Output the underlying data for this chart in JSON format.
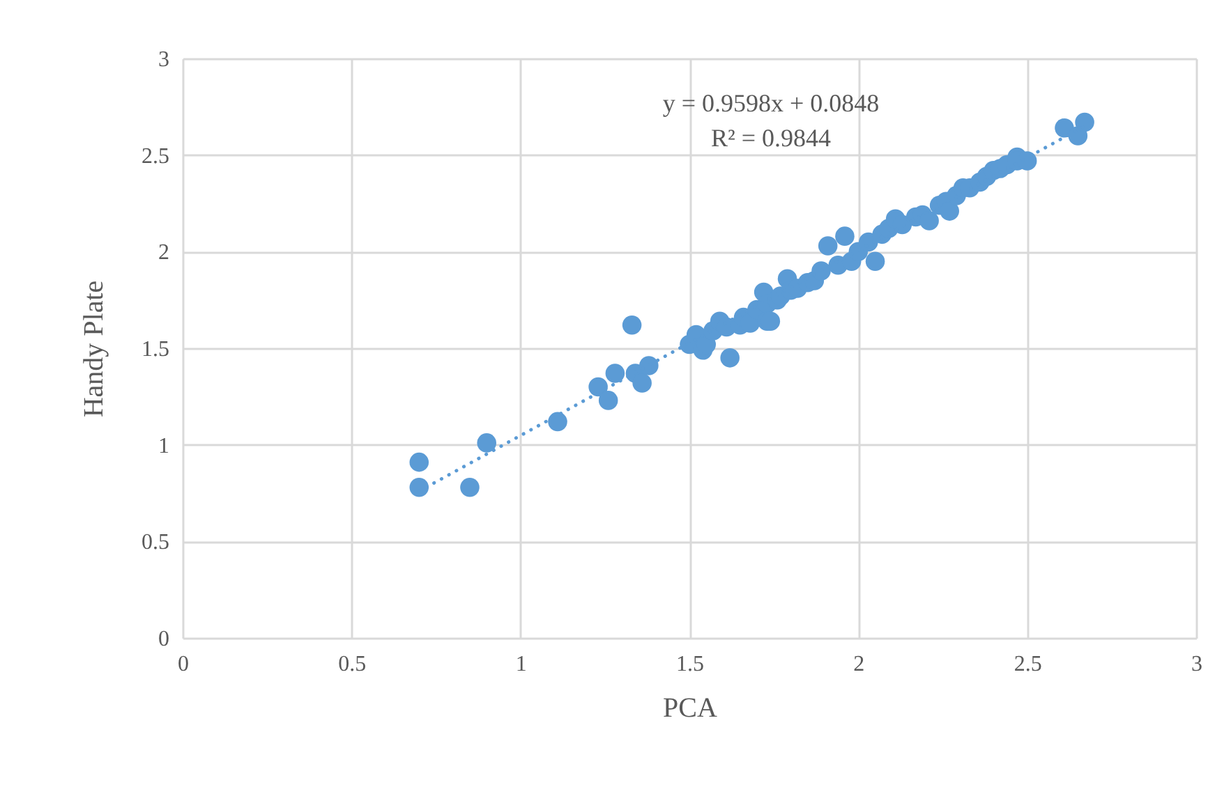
{
  "chart_data": {
    "type": "scatter",
    "xlabel": "PCA",
    "ylabel": "Handy Plate",
    "xlim": [
      0,
      3
    ],
    "ylim": [
      0,
      3
    ],
    "xticks": [
      0,
      0.5,
      1,
      1.5,
      2,
      2.5,
      3
    ],
    "yticks": [
      0,
      0.5,
      1,
      1.5,
      2,
      2.5,
      3
    ],
    "grid": true,
    "annotations": [
      "y = 0.9598x + 0.0848",
      "R² = 0.9844"
    ],
    "series": [
      {
        "marker": "circle",
        "color": "#5b9bd5",
        "x": [
          0.7,
          0.7,
          0.85,
          0.9,
          1.11,
          1.23,
          1.26,
          1.28,
          1.33,
          1.34,
          1.36,
          1.38,
          1.5,
          1.52,
          1.54,
          1.55,
          1.57,
          1.59,
          1.61,
          1.62,
          1.65,
          1.66,
          1.68,
          1.7,
          1.72,
          1.73,
          1.73,
          1.74,
          1.76,
          1.77,
          1.79,
          1.8,
          1.82,
          1.85,
          1.87,
          1.89,
          1.91,
          1.94,
          1.96,
          1.98,
          2.0,
          2.03,
          2.05,
          2.07,
          2.09,
          2.11,
          2.13,
          2.17,
          2.19,
          2.21,
          2.24,
          2.26,
          2.27,
          2.29,
          2.31,
          2.33,
          2.36,
          2.38,
          2.4,
          2.42,
          2.44,
          2.47,
          2.47,
          2.5,
          2.61,
          2.65,
          2.67
        ],
        "values": [
          0.91,
          0.78,
          0.78,
          1.01,
          1.12,
          1.3,
          1.23,
          1.37,
          1.62,
          1.37,
          1.32,
          1.41,
          1.52,
          1.57,
          1.49,
          1.52,
          1.59,
          1.64,
          1.61,
          1.45,
          1.62,
          1.66,
          1.63,
          1.7,
          1.79,
          1.73,
          1.64,
          1.64,
          1.75,
          1.77,
          1.86,
          1.8,
          1.81,
          1.84,
          1.85,
          1.9,
          2.03,
          1.93,
          2.08,
          1.95,
          2.0,
          2.05,
          1.95,
          2.09,
          2.12,
          2.17,
          2.14,
          2.18,
          2.19,
          2.16,
          2.24,
          2.26,
          2.21,
          2.29,
          2.33,
          2.33,
          2.36,
          2.39,
          2.42,
          2.43,
          2.45,
          2.49,
          2.47,
          2.47,
          2.64,
          2.6,
          2.67
        ]
      },
      {
        "type": "line",
        "color": "#5b9bd5",
        "line_style": "dotted",
        "x": [
          0.7,
          2.67
        ],
        "values": [
          0.76,
          2.65
        ]
      }
    ]
  }
}
